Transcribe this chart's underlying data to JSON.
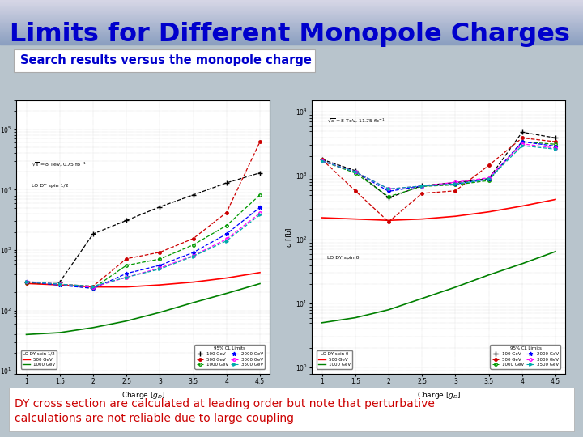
{
  "title": "Limits for Different Monopole Charges",
  "subtitle": "Search results versus the monopole charge",
  "bottom_text_line1": "DY cross section are calculated at leading order but note that perturbative",
  "bottom_text_line2": "calculations are not reliable due to large coupling",
  "title_color": "#0000CC",
  "subtitle_color": "#0000CC",
  "bottom_text_color": "#CC0000",
  "bg_color": "#b8c4cc",
  "header_color_top": "#8aaccc",
  "header_color_bottom": "#c8d8e8",
  "white_box_color": "#ffffff",
  "subtitle_box_border": "#aaaaaa",
  "bottom_box_border": "#aaaaaa"
}
